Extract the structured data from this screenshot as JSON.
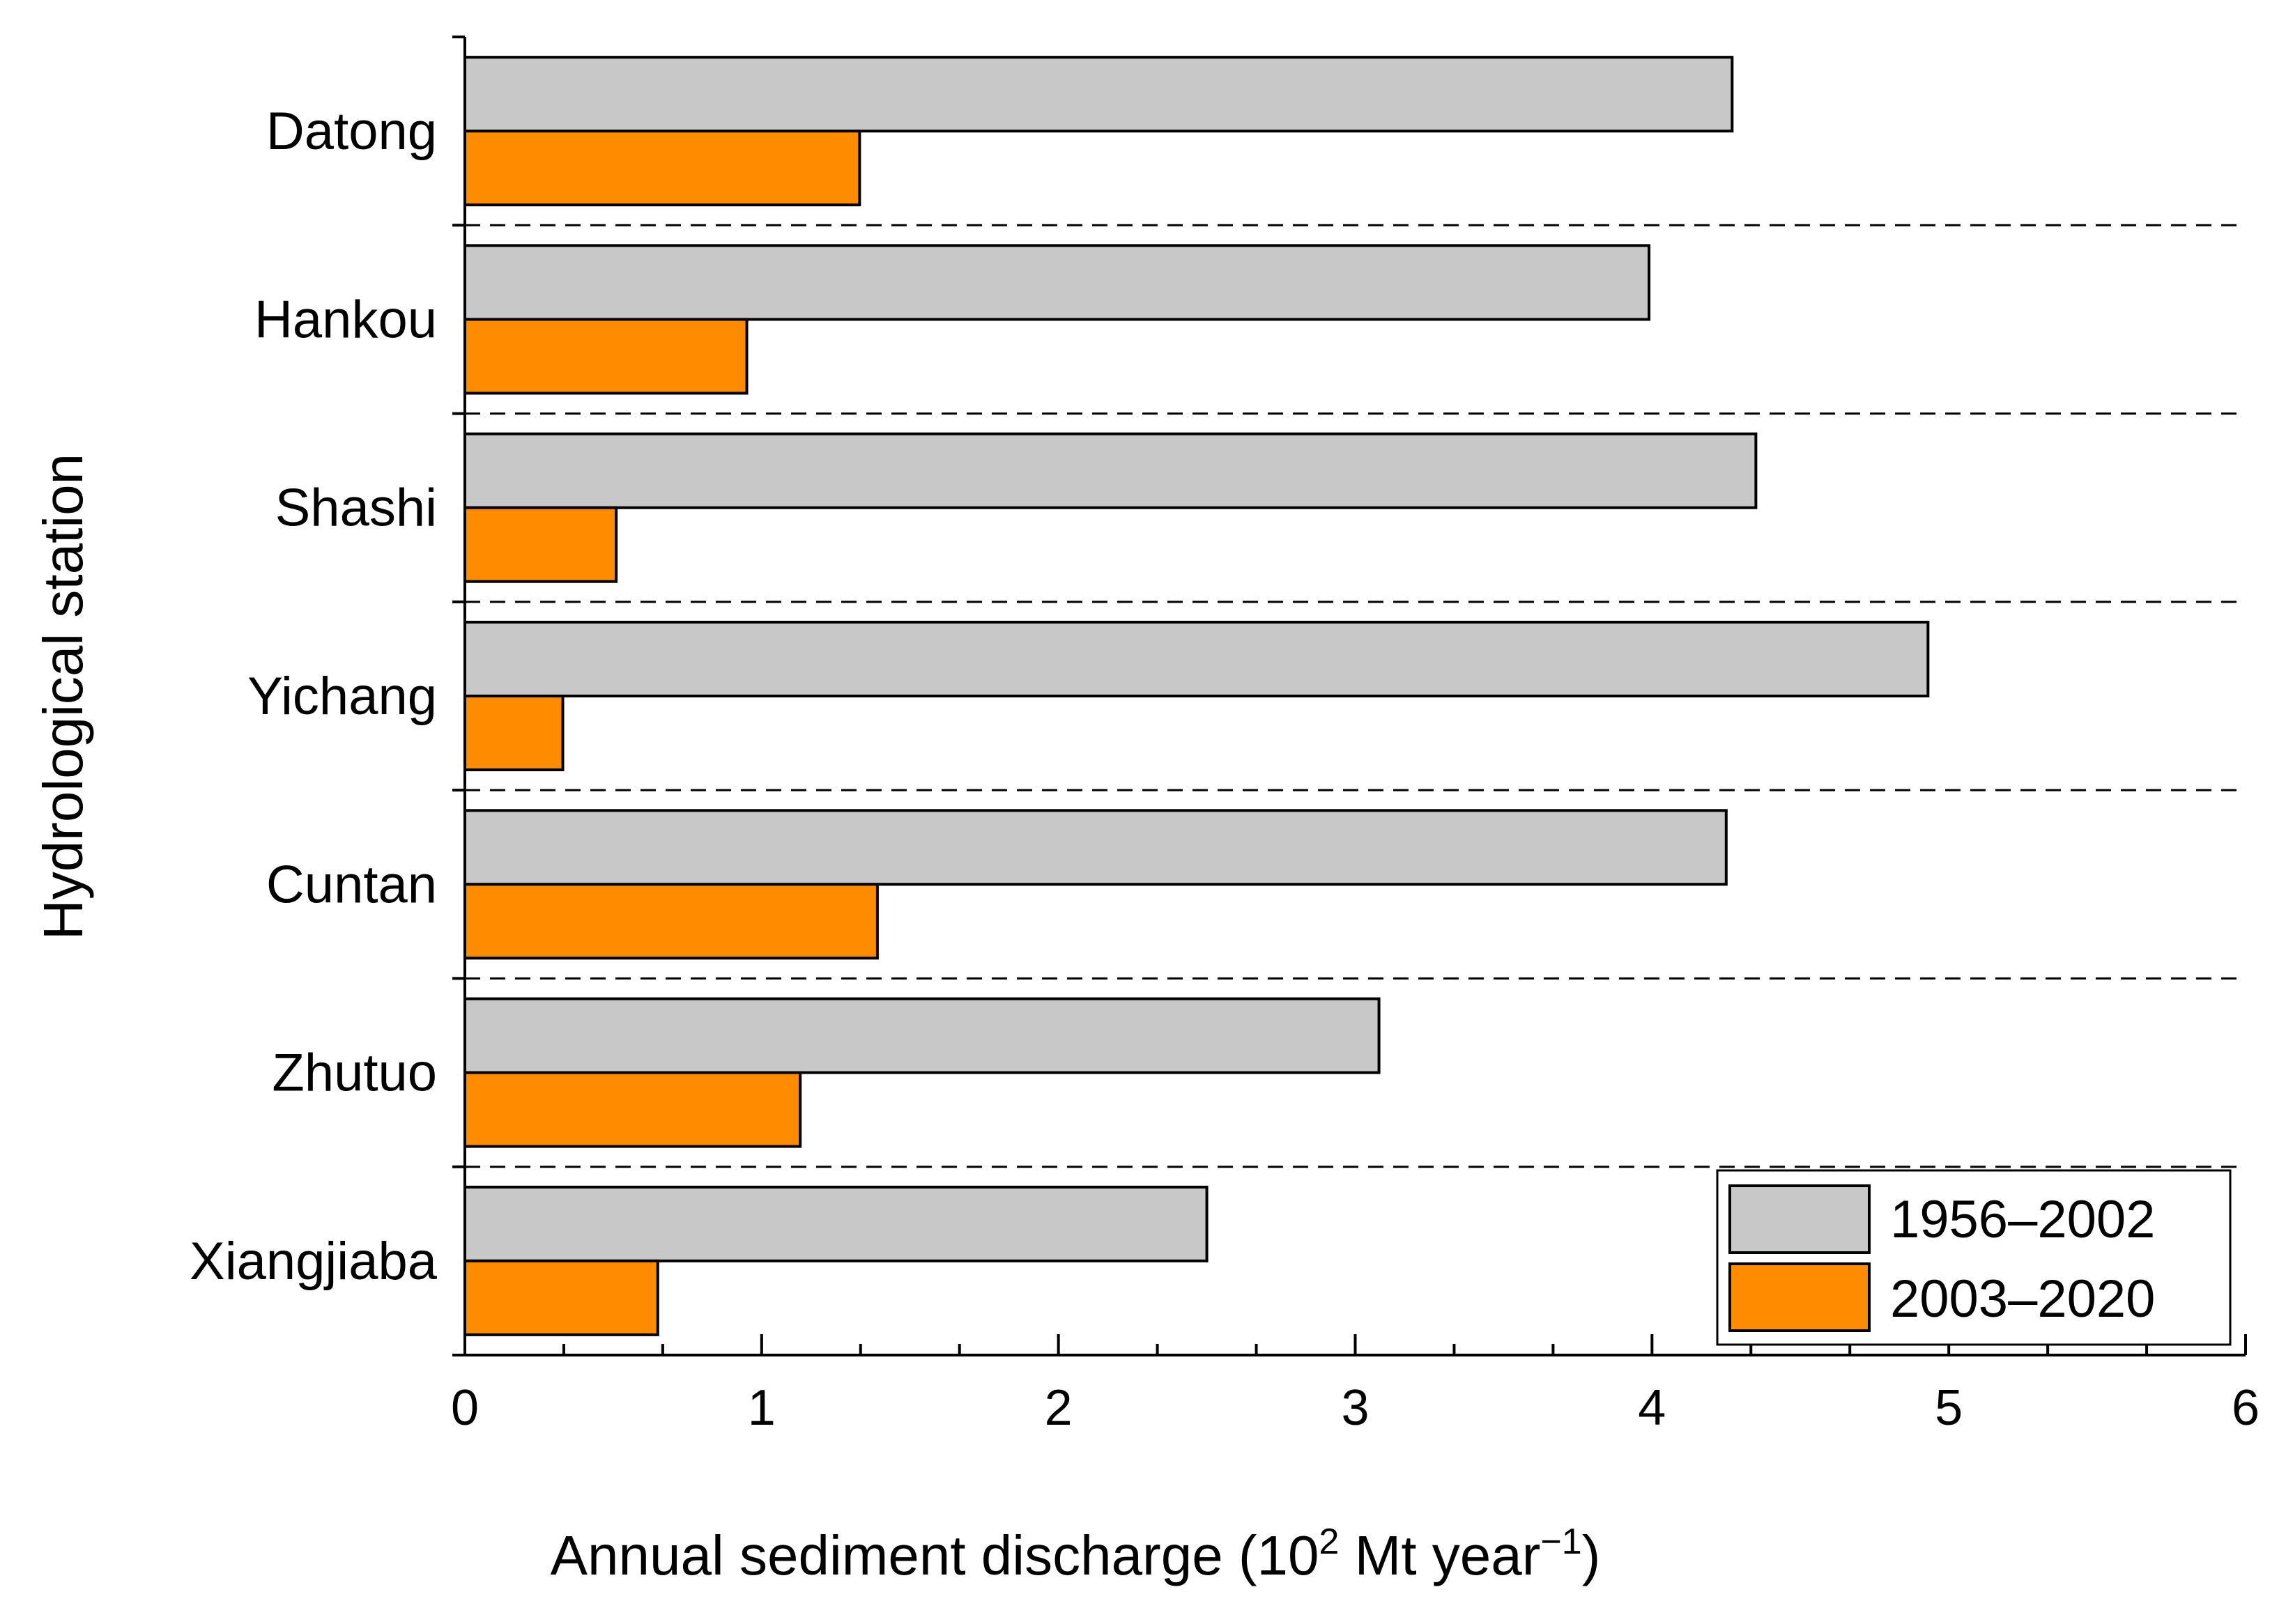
{
  "chart_data": {
    "type": "bar",
    "orientation": "horizontal",
    "title": "",
    "xlabel": {
      "main": "Annual sediment discharge (10",
      "sup1": "2",
      "mid": " Mt year",
      "sup2": "−1",
      "end": ")"
    },
    "ylabel": "Hydrological station",
    "xlim": [
      0,
      6
    ],
    "x_major_ticks": [
      0,
      1,
      2,
      3,
      4,
      5,
      6
    ],
    "x_tick_labels": [
      "0",
      "1",
      "2",
      "3",
      "4",
      "5",
      "6"
    ],
    "categories": [
      "Datong",
      "Hankou",
      "Shashi",
      "Yichang",
      "Cuntan",
      "Zhutuo",
      "Xiangjiaba"
    ],
    "series": [
      {
        "name": "1956–2002",
        "color": "#c8c8c8",
        "values": [
          4.27,
          3.99,
          4.35,
          4.93,
          4.25,
          3.08,
          2.5
        ]
      },
      {
        "name": "2003–2020",
        "color": "#ff8c00",
        "values": [
          1.33,
          0.95,
          0.51,
          0.33,
          1.39,
          1.13,
          0.65
        ]
      }
    ],
    "separators": "dashed",
    "legend_position": "bottom-right"
  }
}
